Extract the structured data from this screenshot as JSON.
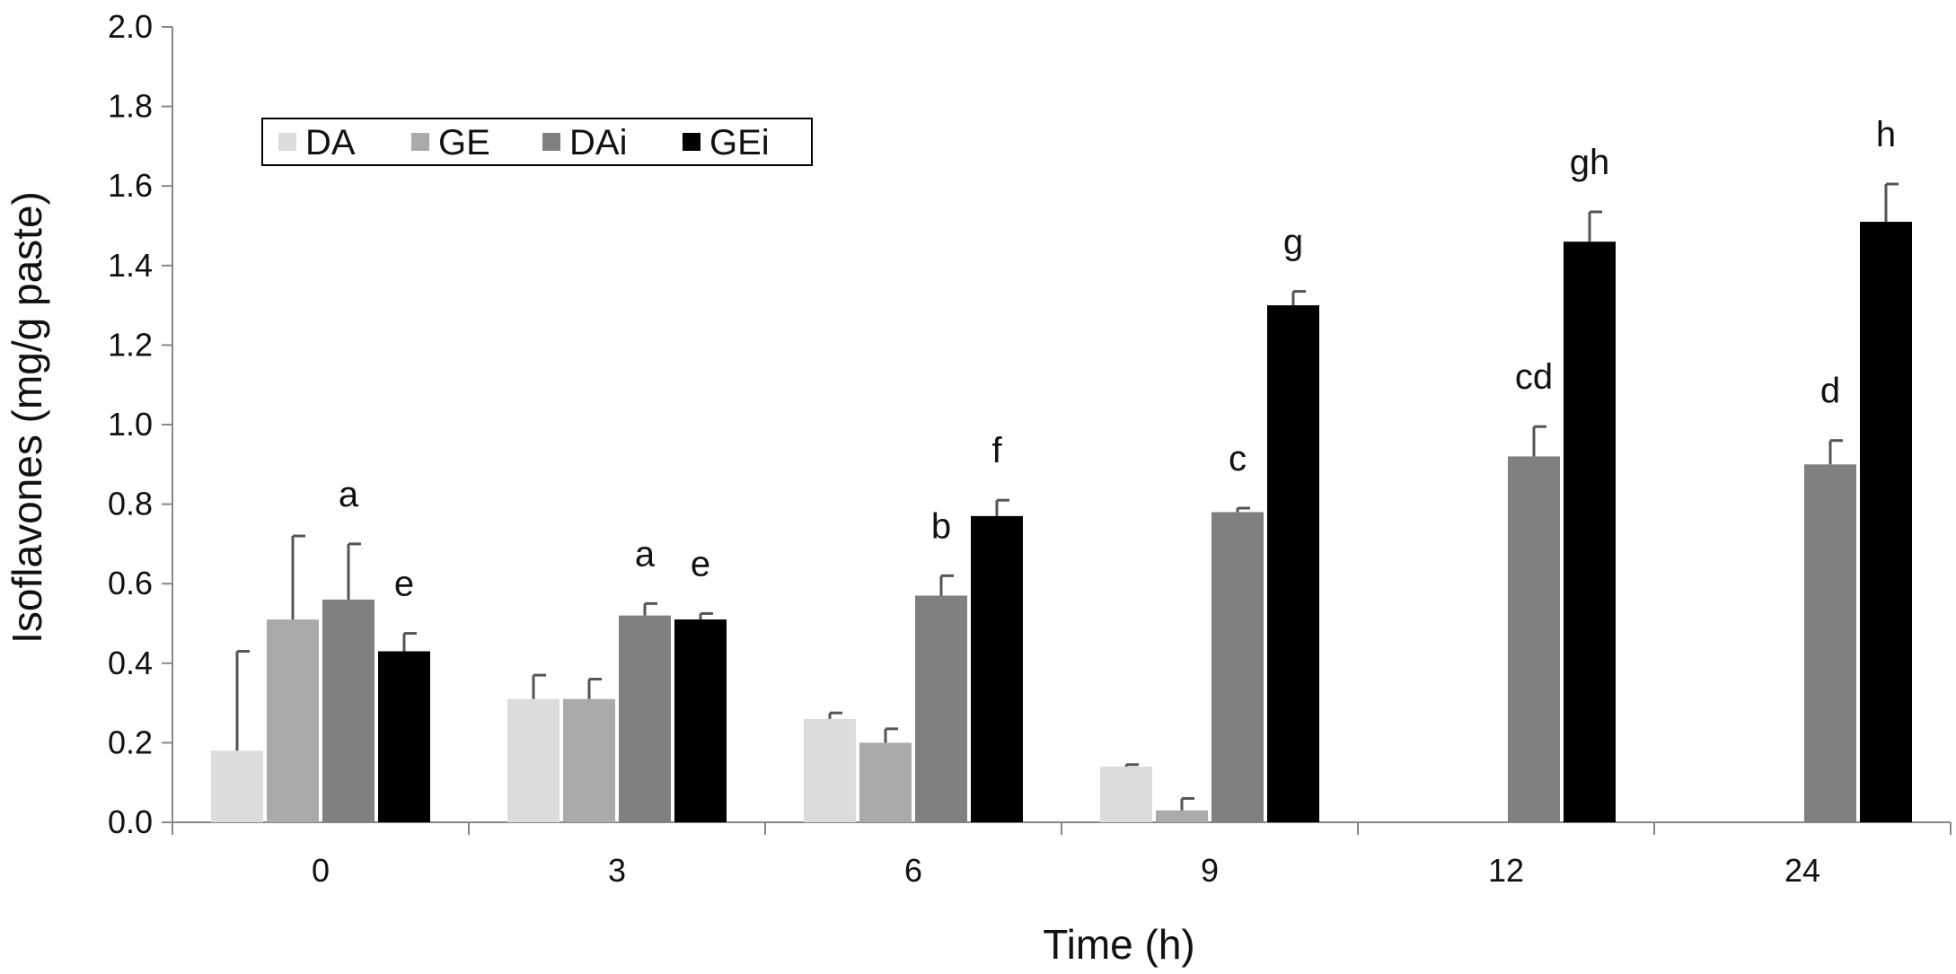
{
  "chart_data": {
    "type": "bar",
    "xlabel": "Time (h)",
    "ylabel": "Isoflavones (mg/g paste)",
    "ylim": [
      0,
      2.0
    ],
    "yticks": [
      "0.0",
      "0.2",
      "0.4",
      "0.6",
      "0.8",
      "1.0",
      "1.2",
      "1.4",
      "1.6",
      "1.8",
      "2.0"
    ],
    "categories": [
      "0",
      "3",
      "6",
      "9",
      "12",
      "24"
    ],
    "grid": false,
    "legend_position": "top-left",
    "series": [
      {
        "name": "DA",
        "color": "#dcdcdc",
        "values": [
          0.18,
          0.31,
          0.26,
          0.14,
          null,
          null
        ],
        "errors": [
          0.25,
          0.06,
          0.015,
          0.005,
          null,
          null
        ],
        "labels": [
          "",
          "",
          "",
          "",
          "",
          ""
        ]
      },
      {
        "name": "GE",
        "color": "#aaaaaa",
        "values": [
          0.51,
          0.31,
          0.2,
          0.03,
          null,
          null
        ],
        "errors": [
          0.21,
          0.05,
          0.035,
          0.03,
          null,
          null
        ],
        "labels": [
          "",
          "",
          "",
          "",
          "",
          ""
        ]
      },
      {
        "name": "DAi",
        "color": "#808080",
        "values": [
          0.56,
          0.52,
          0.57,
          0.78,
          0.92,
          0.9
        ],
        "errors": [
          0.14,
          0.03,
          0.05,
          0.01,
          0.075,
          0.06
        ],
        "labels": [
          "a",
          "a",
          "b",
          "c",
          "cd",
          "d"
        ]
      },
      {
        "name": "GEi",
        "color": "#000000",
        "values": [
          0.43,
          0.51,
          0.77,
          1.3,
          1.46,
          1.51
        ],
        "errors": [
          0.045,
          0.015,
          0.04,
          0.035,
          0.075,
          0.095
        ],
        "labels": [
          "e",
          "e",
          "f",
          "g",
          "gh",
          "h"
        ]
      }
    ]
  }
}
